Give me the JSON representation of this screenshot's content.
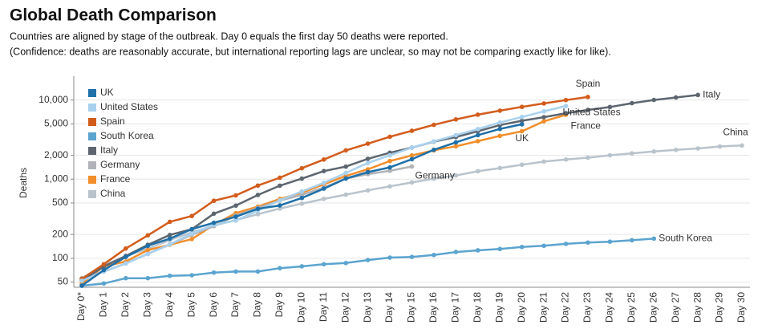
{
  "chart_data": {
    "type": "line",
    "title": "Global Death Comparison",
    "subtitle": [
      "Countries are aligned by stage of the outbreak. Day 0 equals the first day 50 deaths were reported.",
      "(Confidence: deaths are reasonably accurate, but international reporting lags are unclear, so may not be comparing exactly like for like)."
    ],
    "y_label": "Deaths",
    "log_scale": true,
    "grid": true,
    "legend": "top-left",
    "categories": [
      "Day 0*",
      "Day 1",
      "Day 2",
      "Day 3",
      "Day 4",
      "Day 5",
      "Day 6",
      "Day 7",
      "Day 8",
      "Day 9",
      "Day 10",
      "Day 11",
      "Day 12",
      "Day 13",
      "Day 14",
      "Day 15",
      "Day 16",
      "Day 17",
      "Day 18",
      "Day 19",
      "Day 20",
      "Day 21",
      "Day 22",
      "Day 23",
      "Day 24",
      "Day 25",
      "Day 26",
      "Day 27",
      "Day 28",
      "Day 29",
      "Day 30"
    ],
    "ylim": [
      43,
      20000
    ],
    "yticks": [
      50,
      100,
      200,
      500,
      {
        "value": 1000,
        "label": "1,000"
      },
      {
        "value": 2000,
        "label": "2,000"
      },
      {
        "value": 5000,
        "label": "5,000"
      },
      {
        "value": 10000,
        "label": "10,000"
      }
    ],
    "series": [
      {
        "name": "UK",
        "color": "#1f6fa8",
        "values": [
          45,
          71,
          104,
          144,
          177,
          233,
          281,
          335,
          422,
          465,
          578,
          759,
          1019,
          1228,
          1408,
          1789,
          2352,
          2921,
          3605,
          4313,
          4934,
          null,
          null,
          null,
          null,
          null,
          null,
          null,
          null,
          null,
          null
        ]
      },
      {
        "name": "United States",
        "color": "#a9d1ee",
        "values": [
          52,
          68,
          86,
          113,
          150,
          205,
          265,
          300,
          400,
          540,
          700,
          900,
          1200,
          1600,
          2000,
          2500,
          3000,
          3600,
          4300,
          5200,
          6100,
          7200,
          8400,
          null,
          null,
          null,
          null,
          null,
          null,
          null,
          null
        ]
      },
      {
        "name": "Spain",
        "color": "#d35c1c",
        "values": [
          55,
          84,
          133,
          195,
          289,
          342,
          533,
          623,
          830,
          1043,
          1375,
          1772,
          2311,
          2808,
          3434,
          4089,
          4858,
          5690,
          6528,
          7340,
          8189,
          9053,
          10003,
          10935,
          null,
          null,
          null,
          null,
          null,
          null,
          null
        ]
      },
      {
        "name": "South Korea",
        "color": "#5ba4cf",
        "values": [
          45,
          48,
          56,
          56,
          60,
          61,
          66,
          68,
          68,
          75,
          79,
          84,
          87,
          95,
          102,
          104,
          110,
          120,
          126,
          131,
          139,
          144,
          152,
          158,
          162,
          169,
          177,
          null,
          null,
          null,
          null
        ]
      },
      {
        "name": "Italy",
        "color": "#5d6670",
        "values": [
          52,
          79,
          107,
          148,
          197,
          233,
          366,
          463,
          631,
          827,
          1016,
          1266,
          1441,
          1809,
          2158,
          2503,
          2978,
          3405,
          4032,
          4825,
          5476,
          6077,
          6820,
          7503,
          8165,
          9134,
          10023,
          10779,
          11591,
          null,
          null
        ]
      },
      {
        "name": "Germany",
        "color": "#b0b3b7",
        "values": [
          55,
          68,
          86,
          114,
          149,
          198,
          255,
          347,
          433,
          536,
          632,
          783,
          1017,
          1158,
          1275,
          1444,
          null,
          null,
          null,
          null,
          null,
          null,
          null,
          null,
          null,
          null,
          null,
          null,
          null,
          null,
          null
        ]
      },
      {
        "name": "France",
        "color": "#f28e2b",
        "values": [
          48,
          79,
          91,
          127,
          148,
          175,
          264,
          372,
          450,
          562,
          674,
          860,
          1100,
          1331,
          1696,
          1995,
          2314,
          2606,
          3024,
          3523,
          4032,
          5387,
          6507,
          null,
          null,
          null,
          null,
          null,
          null,
          null,
          null
        ]
      },
      {
        "name": "China",
        "color": "#b9c3cc",
        "values": [
          56,
          81,
          107,
          132,
          170,
          213,
          259,
          304,
          361,
          425,
          490,
          563,
          637,
          722,
          811,
          908,
          1016,
          1113,
          1259,
          1380,
          1523,
          1665,
          1770,
          1868,
          2004,
          2118,
          2236,
          2345,
          2442,
          2592,
          2663
        ]
      }
    ]
  }
}
